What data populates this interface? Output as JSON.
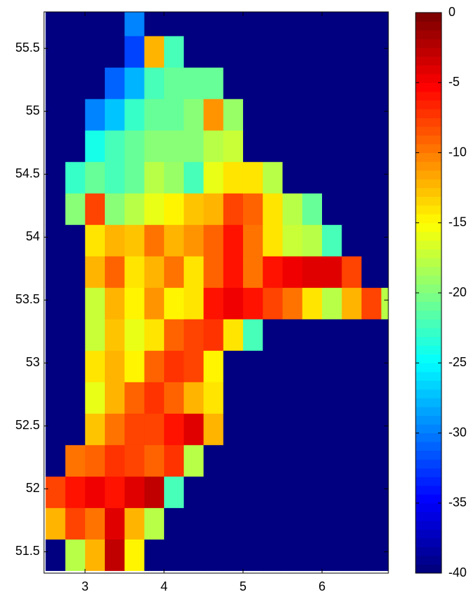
{
  "chart_data": {
    "type": "heatmap",
    "colormap": "jet",
    "x": [
      2.625,
      2.875,
      3.125,
      3.375,
      3.625,
      3.875,
      4.125,
      4.375,
      4.625,
      4.875,
      5.125,
      5.375,
      5.625,
      5.875,
      6.125,
      6.375,
      6.625,
      6.875
    ],
    "y": [
      51.475,
      51.725,
      51.975,
      52.225,
      52.475,
      52.725,
      52.975,
      53.225,
      53.475,
      53.725,
      53.975,
      54.225,
      54.475,
      54.725,
      54.975,
      55.225,
      55.475,
      55.725
    ],
    "z": [
      [
        -40,
        -18,
        -12,
        -3,
        -15,
        -40,
        -40,
        -40,
        -40,
        -40,
        -40,
        -40,
        -40,
        -40,
        -40,
        -40,
        -40,
        -40
      ],
      [
        -12,
        -8,
        -10,
        -4,
        -12,
        -18,
        -40,
        -40,
        -40,
        -40,
        -40,
        -40,
        -40,
        -40,
        -40,
        -40,
        -40,
        -40
      ],
      [
        -8,
        -6,
        -5,
        -6,
        -4,
        -3,
        -22,
        -40,
        -40,
        -40,
        -40,
        -40,
        -40,
        -40,
        -40,
        -40,
        -40,
        -40
      ],
      [
        -40,
        -10,
        -9,
        -7,
        -8,
        -9,
        -7,
        -18,
        -40,
        -40,
        -40,
        -40,
        -40,
        -40,
        -40,
        -40,
        -40,
        -40
      ],
      [
        -40,
        -40,
        -13,
        -10,
        -8,
        -8,
        -6,
        -4,
        -12,
        -40,
        -40,
        -40,
        -40,
        -40,
        -40,
        -40,
        -40,
        -40
      ],
      [
        -40,
        -40,
        -16,
        -12,
        -9,
        -7,
        -9,
        -12,
        -14,
        -40,
        -40,
        -40,
        -40,
        -40,
        -40,
        -40,
        -40,
        -40
      ],
      [
        -40,
        -40,
        -14,
        -12,
        -15,
        -9,
        -7,
        -8,
        -15,
        -40,
        -40,
        -40,
        -40,
        -40,
        -40,
        -40,
        -40,
        -40
      ],
      [
        -40,
        -40,
        -17,
        -13,
        -16,
        -14,
        -9,
        -8,
        -7,
        -14,
        -22,
        -40,
        -40,
        -40,
        -40,
        -40,
        -40,
        -40
      ],
      [
        -40,
        -40,
        -17,
        -12,
        -15,
        -11,
        -15,
        -14,
        -6,
        -5,
        -6,
        -8,
        -10,
        -14,
        -18,
        -12,
        -8,
        -18
      ],
      [
        -40,
        -40,
        -12,
        -9,
        -14,
        -12,
        -10,
        -14,
        -9,
        -6,
        -10,
        -6,
        -5,
        -4,
        -4,
        -8,
        -40,
        -40
      ],
      [
        -40,
        -40,
        -14,
        -12,
        -13,
        -10,
        -12,
        -11,
        -9,
        -6,
        -10,
        -14,
        -17,
        -18,
        -22,
        -40,
        -40,
        -40
      ],
      [
        -40,
        -20,
        -8,
        -20,
        -18,
        -16,
        -15,
        -13,
        -12,
        -8,
        -9,
        -14,
        -18,
        -21,
        -40,
        -40,
        -40,
        -40
      ],
      [
        -40,
        -23,
        -21,
        -22,
        -21,
        -18,
        -19,
        -22,
        -16,
        -14,
        -14,
        -18,
        -40,
        -40,
        -40,
        -40,
        -40,
        -40
      ],
      [
        -40,
        -40,
        -24,
        -22,
        -21,
        -20,
        -20,
        -20,
        -18,
        -17,
        -40,
        -40,
        -40,
        -40,
        -40,
        -40,
        -40,
        -40
      ],
      [
        -40,
        -40,
        -30,
        -27,
        -23,
        -21,
        -21,
        -20,
        -11,
        -19,
        -40,
        -40,
        -40,
        -40,
        -40,
        -40,
        -40,
        -40
      ],
      [
        -40,
        -40,
        -40,
        -31,
        -28,
        -22,
        -21,
        -21,
        -21,
        -40,
        -40,
        -40,
        -40,
        -40,
        -40,
        -40,
        -40,
        -40
      ],
      [
        -40,
        -40,
        -40,
        -40,
        -32,
        -12,
        -22,
        -40,
        -40,
        -40,
        -40,
        -40,
        -40,
        -40,
        -40,
        -40,
        -40,
        -40
      ],
      [
        -40,
        -40,
        -40,
        -40,
        -30,
        -40,
        -40,
        -40,
        -40,
        -40,
        -40,
        -40,
        -40,
        -40,
        -40,
        -40,
        -40,
        -40
      ]
    ],
    "xlim": [
      2.48,
      6.84
    ],
    "ylim": [
      51.33,
      55.79
    ],
    "xticks": [
      3,
      4,
      5,
      6
    ],
    "yticks": [
      51.5,
      52,
      52.5,
      53,
      53.5,
      54,
      54.5,
      55,
      55.5
    ],
    "clim": [
      -40,
      0
    ],
    "cticks": [
      0,
      -5,
      -10,
      -15,
      -20,
      -25,
      -30,
      -35,
      -40
    ]
  }
}
